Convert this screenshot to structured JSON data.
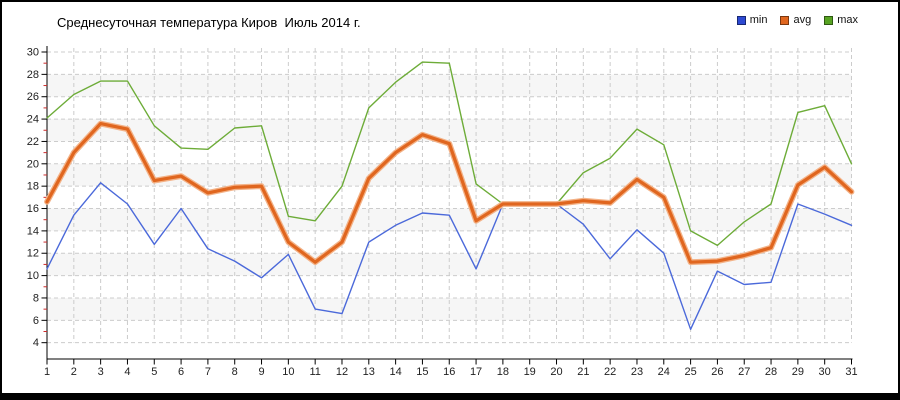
{
  "title": "Среднесуточная температура Киров  Июль 2014 г.",
  "legend": [
    {
      "label": "min",
      "color": "#2d49d2"
    },
    {
      "label": "avg",
      "color": "#e0661f"
    },
    {
      "label": "max",
      "color": "#57a322"
    }
  ],
  "colors": {
    "grid": "#cccccc",
    "band": "#f6f6f6",
    "axis": "#000000",
    "minor_tick": "#cc2b2b",
    "tick_label": "#222222"
  },
  "chart_data": {
    "type": "line",
    "title": "Среднесуточная температура Киров  Июль 2014 г.",
    "xlabel": "",
    "ylabel": "",
    "x": [
      1,
      2,
      3,
      4,
      5,
      6,
      7,
      8,
      9,
      10,
      11,
      12,
      13,
      14,
      15,
      16,
      17,
      18,
      19,
      20,
      21,
      22,
      23,
      24,
      25,
      26,
      27,
      28,
      29,
      30,
      31
    ],
    "ylim": [
      4,
      30
    ],
    "ytick_step": 2,
    "grid": true,
    "legend_position": "top-right",
    "series": [
      {
        "name": "min",
        "color": "#4b69da",
        "halo": null,
        "width": 1.4,
        "values": [
          10.6,
          15.4,
          18.3,
          16.4,
          12.8,
          16.0,
          12.4,
          11.3,
          9.8,
          11.9,
          7.0,
          6.6,
          13.0,
          14.5,
          15.6,
          15.4,
          10.6,
          16.4,
          16.4,
          16.4,
          14.6,
          11.5,
          14.1,
          12.0,
          5.2,
          10.4,
          9.2,
          9.4,
          16.4,
          15.5,
          14.5
        ]
      },
      {
        "name": "avg",
        "color": "#e0661f",
        "halo": "#f3b287",
        "width": 3.2,
        "values": [
          16.6,
          21.0,
          23.6,
          23.1,
          18.5,
          18.9,
          17.4,
          17.9,
          18.0,
          13.0,
          11.2,
          13.0,
          18.7,
          21.0,
          22.6,
          21.8,
          14.9,
          16.4,
          16.4,
          16.4,
          16.7,
          16.5,
          18.6,
          17.0,
          11.2,
          11.3,
          11.8,
          12.5,
          18.1,
          19.7,
          17.5
        ]
      },
      {
        "name": "max",
        "color": "#6dac38",
        "halo": null,
        "width": 1.4,
        "values": [
          24.1,
          26.2,
          27.4,
          27.4,
          23.4,
          21.4,
          21.3,
          23.2,
          23.4,
          15.3,
          14.9,
          18.0,
          25.0,
          27.3,
          29.1,
          29.0,
          18.2,
          16.4,
          16.4,
          16.4,
          19.2,
          20.5,
          23.1,
          21.7,
          14.0,
          12.7,
          14.8,
          16.4,
          24.6,
          25.2,
          20.0
        ]
      }
    ]
  }
}
